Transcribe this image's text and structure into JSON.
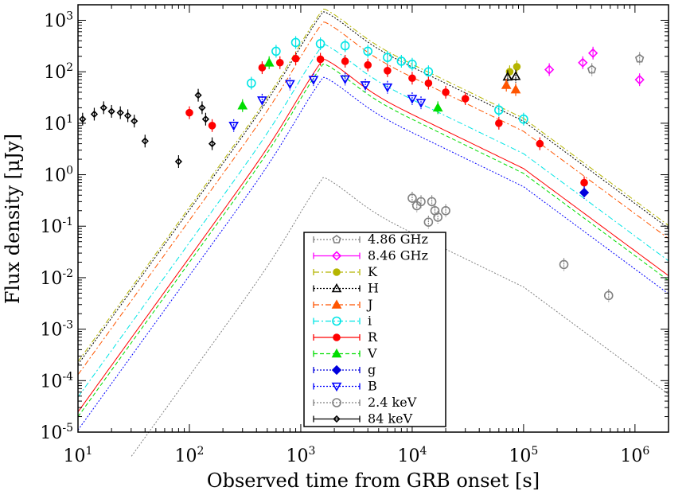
{
  "chart_data": {
    "type": "scatter",
    "title": "",
    "xlabel": "Observed time from GRB onset [s]",
    "ylabel": "Flux density [μJy]",
    "xscale": "log",
    "yscale": "log",
    "xlim": [
      10,
      2000000
    ],
    "ylim": [
      1e-05,
      2000
    ],
    "x_ticks": [
      {
        "base": "10",
        "exp": "1",
        "value": 10
      },
      {
        "base": "10",
        "exp": "2",
        "value": 100
      },
      {
        "base": "10",
        "exp": "3",
        "value": 1000
      },
      {
        "base": "10",
        "exp": "4",
        "value": 10000
      },
      {
        "base": "10",
        "exp": "5",
        "value": 100000
      },
      {
        "base": "10",
        "exp": "6",
        "value": 1000000
      }
    ],
    "y_ticks": [
      {
        "base": "10",
        "exp": "-5",
        "value": 1e-05
      },
      {
        "base": "10",
        "exp": "-4",
        "value": 0.0001
      },
      {
        "base": "10",
        "exp": "-3",
        "value": 0.001
      },
      {
        "base": "10",
        "exp": "-2",
        "value": 0.01
      },
      {
        "base": "10",
        "exp": "-1",
        "value": 0.1
      },
      {
        "base": "10",
        "exp": "0",
        "value": 1
      },
      {
        "base": "10",
        "exp": "1",
        "value": 10
      },
      {
        "base": "10",
        "exp": "2",
        "value": 100
      },
      {
        "base": "10",
        "exp": "3",
        "value": 1000
      }
    ],
    "legend_position": "bottom-center",
    "series": [
      {
        "name": "4.86 GHz",
        "color": "#808080",
        "marker": "pentagon",
        "line": "dotted",
        "model_scale": null,
        "points": [
          [
            410000,
            110
          ],
          [
            1100000,
            180
          ]
        ]
      },
      {
        "name": "8.46 GHz",
        "color": "#ff00ff",
        "marker": "diamond",
        "line": "solid",
        "model_scale": null,
        "points": [
          [
            170000,
            110
          ],
          [
            340000,
            150
          ],
          [
            420000,
            230
          ],
          [
            1100000,
            70
          ]
        ]
      },
      {
        "name": "K",
        "color": "#b5b500",
        "marker": "circle-filled",
        "line": "dashdot",
        "model_scale": 1700,
        "points": [
          [
            75000,
            100
          ],
          [
            87000,
            125
          ]
        ]
      },
      {
        "name": "H",
        "color": "#000000",
        "marker": "triangle-open",
        "line": "dotted",
        "model_scale": 1500,
        "points": [
          [
            72000,
            80
          ],
          [
            85000,
            82
          ]
        ]
      },
      {
        "name": "J",
        "color": "#ff5500",
        "marker": "triangle-filled",
        "line": "dashdot",
        "model_scale": 950,
        "points": [
          [
            70000,
            55
          ],
          [
            85000,
            45
          ]
        ]
      },
      {
        "name": "i",
        "color": "#00e5e5",
        "marker": "circle-open",
        "line": "dashdot",
        "model_scale": 350,
        "points": [
          [
            360,
            60
          ],
          [
            600,
            250
          ],
          [
            900,
            370
          ],
          [
            1500,
            350
          ],
          [
            2500,
            320
          ],
          [
            4000,
            250
          ],
          [
            6000,
            190
          ],
          [
            8000,
            160
          ],
          [
            10000,
            140
          ],
          [
            14000,
            100
          ],
          [
            60000,
            18
          ],
          [
            100000,
            12
          ]
        ]
      },
      {
        "name": "R",
        "color": "#ff0000",
        "marker": "circle-filled",
        "line": "solid",
        "model_scale": 180,
        "points": [
          [
            100,
            16
          ],
          [
            160,
            9
          ],
          [
            450,
            120
          ],
          [
            650,
            150
          ],
          [
            900,
            180
          ],
          [
            1500,
            175
          ],
          [
            2500,
            160
          ],
          [
            4000,
            135
          ],
          [
            6000,
            105
          ],
          [
            10000,
            75
          ],
          [
            14000,
            60
          ],
          [
            20000,
            40
          ],
          [
            30000,
            30
          ],
          [
            60000,
            10
          ],
          [
            140000,
            4
          ],
          [
            350000,
            0.7
          ]
        ]
      },
      {
        "name": "V",
        "color": "#00dd00",
        "marker": "triangle-filled",
        "line": "dashed",
        "model_scale": 145,
        "points": [
          [
            300,
            22
          ],
          [
            520,
            150
          ],
          [
            17000,
            20
          ]
        ]
      },
      {
        "name": "g",
        "color": "#0000dd",
        "marker": "diamond-filled",
        "line": "dotted",
        "model_scale": null,
        "points": [
          [
            350000,
            0.45
          ]
        ]
      },
      {
        "name": "B",
        "color": "#0000ff",
        "marker": "triangle-down-open",
        "line": "dotted",
        "model_scale": 80,
        "points": [
          [
            250,
            9
          ],
          [
            450,
            28
          ],
          [
            800,
            58
          ],
          [
            1300,
            70
          ],
          [
            2500,
            72
          ],
          [
            3800,
            55
          ],
          [
            6000,
            50
          ],
          [
            10000,
            30
          ],
          [
            12000,
            25
          ]
        ]
      },
      {
        "name": "2.4 keV",
        "color": "#808080",
        "marker": "circle-open",
        "line": "dotted",
        "model_scale": 0.9,
        "points": [
          [
            10000,
            0.35
          ],
          [
            11000,
            0.25
          ],
          [
            12000,
            0.3
          ],
          [
            15000,
            0.3
          ],
          [
            16000,
            0.2
          ],
          [
            17000,
            0.15
          ],
          [
            14000,
            0.12
          ],
          [
            20000,
            0.2
          ],
          [
            230000,
            0.018
          ],
          [
            580000,
            0.0045
          ]
        ]
      },
      {
        "name": "84 keV",
        "color": "#000000",
        "marker": "diamond-small",
        "line": "solid",
        "model_scale": null,
        "points": [
          [
            11,
            12
          ],
          [
            14,
            15
          ],
          [
            17,
            20
          ],
          [
            20,
            17
          ],
          [
            24,
            16
          ],
          [
            28,
            14
          ],
          [
            32,
            11
          ],
          [
            40,
            4.5
          ],
          [
            80,
            1.8
          ],
          [
            120,
            35
          ],
          [
            130,
            20
          ],
          [
            140,
            12
          ],
          [
            160,
            4
          ]
        ]
      }
    ]
  }
}
